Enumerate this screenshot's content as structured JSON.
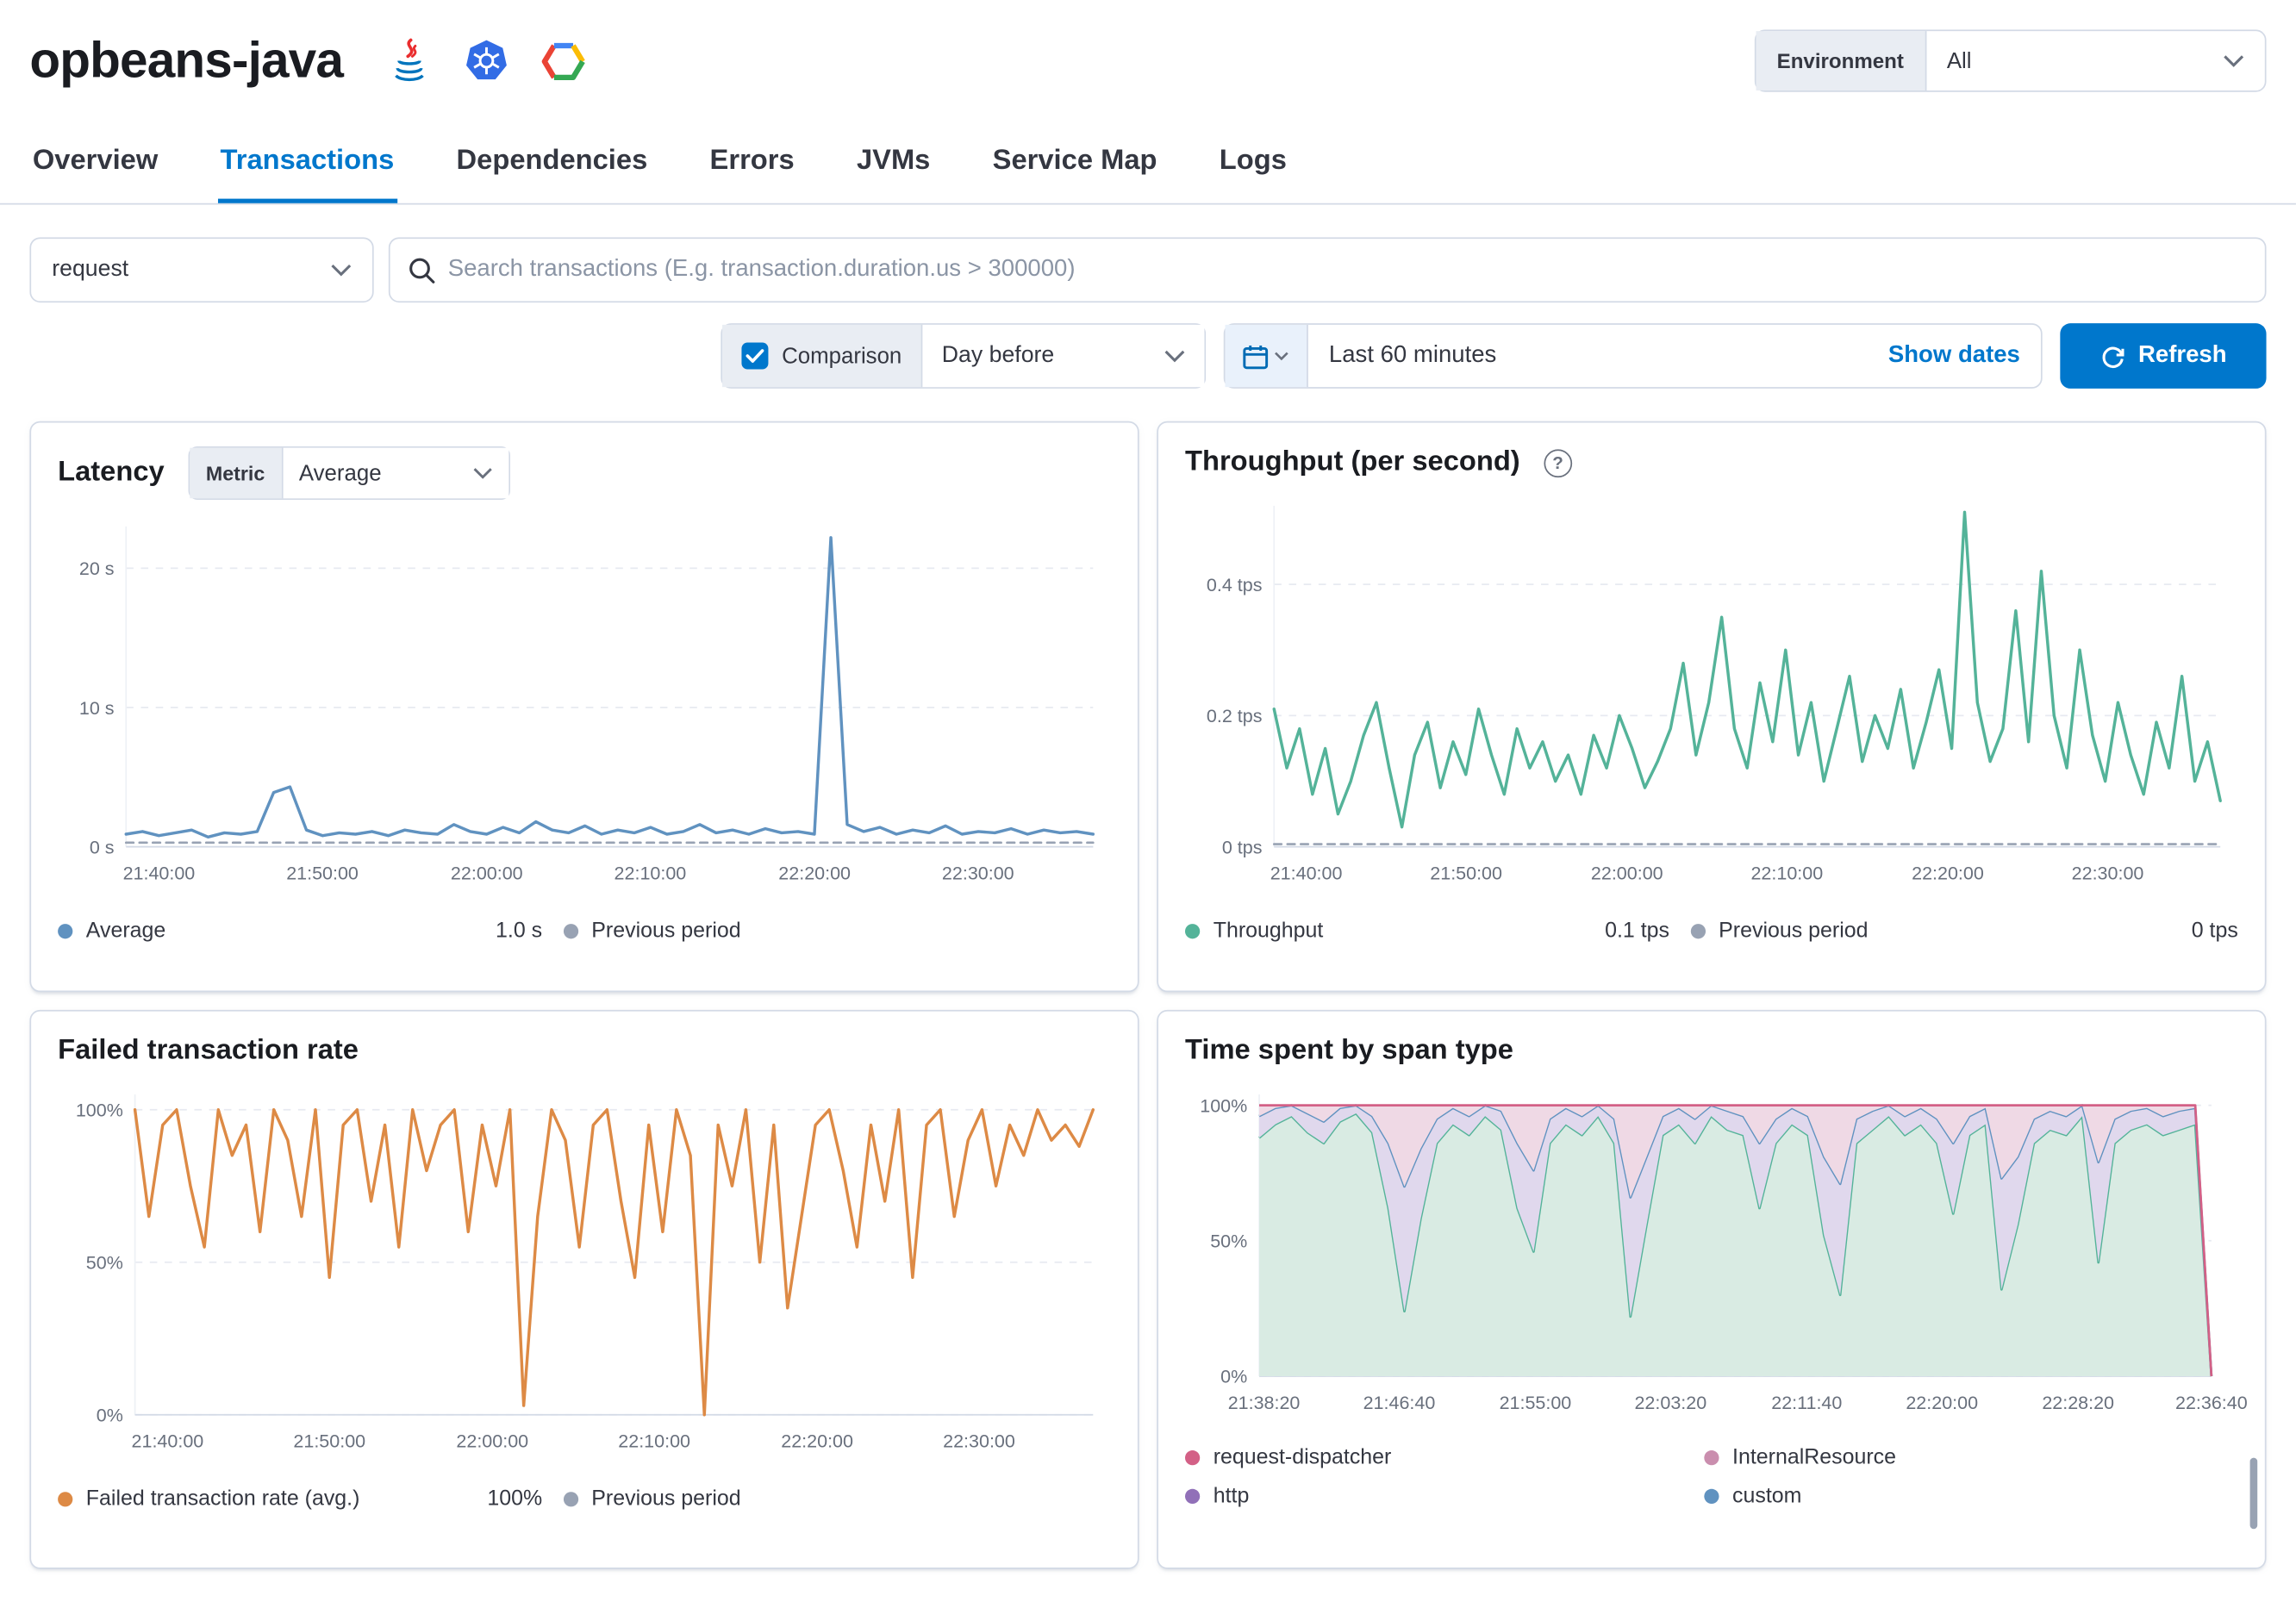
{
  "header": {
    "service_name": "opbeans-java",
    "environment_label": "Environment",
    "environment_value": "All"
  },
  "tabs": [
    {
      "label": "Overview"
    },
    {
      "label": "Transactions"
    },
    {
      "label": "Dependencies"
    },
    {
      "label": "Errors"
    },
    {
      "label": "JVMs"
    },
    {
      "label": "Service Map"
    },
    {
      "label": "Logs"
    }
  ],
  "filters": {
    "type_value": "request",
    "search_placeholder": "Search transactions (E.g. transaction.duration.us > 300000)",
    "comparison_label": "Comparison",
    "comparison_value": "Day before",
    "time_range": "Last 60 minutes",
    "show_dates_label": "Show dates",
    "refresh_label": "Refresh"
  },
  "panels": {
    "latency": {
      "title": "Latency",
      "metric_label": "Metric",
      "metric_value": "Average",
      "legend": [
        {
          "name": "Average",
          "value": "1.0 s",
          "color": "#6092C0"
        },
        {
          "name": "Previous period",
          "value": "",
          "color": "#98A2B3"
        }
      ]
    },
    "throughput": {
      "title": "Throughput (per second)",
      "help_glyph": "?",
      "legend": [
        {
          "name": "Throughput",
          "value": "0.1 tps",
          "color": "#54B399"
        },
        {
          "name": "Previous period",
          "value": "0 tps",
          "color": "#98A2B3"
        }
      ]
    },
    "failed": {
      "title": "Failed transaction rate",
      "legend": [
        {
          "name": "Failed transaction rate (avg.)",
          "value": "100%",
          "color": "#DD8A45"
        },
        {
          "name": "Previous period",
          "value": "",
          "color": "#98A2B3"
        }
      ]
    },
    "timespent": {
      "title": "Time spent by span type",
      "legend": [
        {
          "name": "request-dispatcher",
          "color": "#D36086"
        },
        {
          "name": "InternalResource",
          "color": "#CA8EAE"
        },
        {
          "name": "http",
          "color": "#9170B8"
        },
        {
          "name": "custom",
          "color": "#6092C0"
        }
      ]
    }
  },
  "chart_data": [
    {
      "id": "latency",
      "type": "line",
      "title": "Latency",
      "ylabel": "seconds",
      "ylim": [
        0,
        23
      ],
      "pad_left": 46,
      "yticks": [
        {
          "v": 0,
          "label": "0 s"
        },
        {
          "v": 10,
          "label": "10 s"
        },
        {
          "v": 20,
          "label": "20 s"
        }
      ],
      "xticks": [
        {
          "f": 0.034,
          "label": "21:40:00"
        },
        {
          "f": 0.203,
          "label": "21:50:00"
        },
        {
          "f": 0.373,
          "label": "22:00:00"
        },
        {
          "f": 0.542,
          "label": "22:10:00"
        },
        {
          "f": 0.712,
          "label": "22:20:00"
        },
        {
          "f": 0.881,
          "label": "22:30:00"
        }
      ],
      "series": [
        {
          "name": "Previous period",
          "color": "#98A2B3",
          "dashed": true,
          "width": 1.5,
          "values": [
            0.3,
            0.3
          ]
        },
        {
          "name": "Average",
          "color": "#6092C0",
          "width": 2,
          "values": [
            0.9,
            1.1,
            0.8,
            1.0,
            1.2,
            0.7,
            1.0,
            0.9,
            1.1,
            3.9,
            4.3,
            1.2,
            0.8,
            1.0,
            0.9,
            1.1,
            0.8,
            1.2,
            1.0,
            0.9,
            1.6,
            1.1,
            0.9,
            1.4,
            1.0,
            1.8,
            1.2,
            1.0,
            1.5,
            0.9,
            1.2,
            1.0,
            1.4,
            0.9,
            1.1,
            1.6,
            1.0,
            1.2,
            0.9,
            1.3,
            1.0,
            1.1,
            0.9,
            22.2,
            1.6,
            1.1,
            1.4,
            0.9,
            1.2,
            1.0,
            1.5,
            0.9,
            1.1,
            1.0,
            1.3,
            0.9,
            1.2,
            1.0,
            1.1,
            0.9
          ]
        }
      ]
    },
    {
      "id": "throughput",
      "type": "line",
      "title": "Throughput (per second)",
      "ylabel": "tps",
      "ylim": [
        0,
        0.52
      ],
      "pad_left": 60,
      "yticks": [
        {
          "v": 0,
          "label": "0 tps"
        },
        {
          "v": 0.2,
          "label": "0.2 tps"
        },
        {
          "v": 0.4,
          "label": "0.4 tps"
        }
      ],
      "xticks": [
        {
          "f": 0.034,
          "label": "21:40:00"
        },
        {
          "f": 0.203,
          "label": "21:50:00"
        },
        {
          "f": 0.373,
          "label": "22:00:00"
        },
        {
          "f": 0.542,
          "label": "22:10:00"
        },
        {
          "f": 0.712,
          "label": "22:20:00"
        },
        {
          "f": 0.881,
          "label": "22:30:00"
        }
      ],
      "series": [
        {
          "name": "Previous period",
          "color": "#98A2B3",
          "dashed": true,
          "width": 1.5,
          "values": [
            0.004,
            0.004
          ]
        },
        {
          "name": "Throughput",
          "color": "#54B399",
          "width": 2,
          "values": [
            0.21,
            0.12,
            0.18,
            0.08,
            0.15,
            0.05,
            0.1,
            0.17,
            0.22,
            0.12,
            0.03,
            0.14,
            0.19,
            0.09,
            0.16,
            0.11,
            0.21,
            0.14,
            0.08,
            0.18,
            0.12,
            0.16,
            0.1,
            0.14,
            0.08,
            0.17,
            0.12,
            0.2,
            0.15,
            0.09,
            0.13,
            0.18,
            0.28,
            0.14,
            0.22,
            0.35,
            0.18,
            0.12,
            0.25,
            0.16,
            0.3,
            0.14,
            0.22,
            0.1,
            0.18,
            0.26,
            0.13,
            0.2,
            0.15,
            0.24,
            0.12,
            0.19,
            0.27,
            0.15,
            0.51,
            0.22,
            0.13,
            0.18,
            0.36,
            0.16,
            0.42,
            0.2,
            0.12,
            0.3,
            0.17,
            0.1,
            0.22,
            0.14,
            0.08,
            0.19,
            0.12,
            0.26,
            0.1,
            0.16,
            0.07
          ]
        }
      ]
    },
    {
      "id": "failed",
      "type": "line",
      "title": "Failed transaction rate",
      "ylabel": "%",
      "ylim": [
        0,
        105
      ],
      "pad_left": 52,
      "yticks": [
        {
          "v": 0,
          "label": "0%"
        },
        {
          "v": 50,
          "label": "50%"
        },
        {
          "v": 100,
          "label": "100%"
        }
      ],
      "xticks": [
        {
          "f": 0.034,
          "label": "21:40:00"
        },
        {
          "f": 0.203,
          "label": "21:50:00"
        },
        {
          "f": 0.373,
          "label": "22:00:00"
        },
        {
          "f": 0.542,
          "label": "22:10:00"
        },
        {
          "f": 0.712,
          "label": "22:20:00"
        },
        {
          "f": 0.881,
          "label": "22:30:00"
        }
      ],
      "series": [
        {
          "name": "Failed transaction rate (avg.)",
          "color": "#DD8A45",
          "width": 2,
          "values": [
            100,
            65,
            95,
            100,
            75,
            55,
            100,
            85,
            95,
            60,
            100,
            90,
            65,
            100,
            45,
            95,
            100,
            70,
            95,
            55,
            100,
            80,
            95,
            100,
            60,
            95,
            75,
            100,
            3,
            65,
            100,
            90,
            55,
            95,
            100,
            70,
            45,
            95,
            60,
            100,
            85,
            0,
            95,
            75,
            100,
            50,
            95,
            35,
            65,
            95,
            100,
            80,
            55,
            95,
            70,
            100,
            45,
            95,
            100,
            65,
            90,
            100,
            75,
            95,
            85,
            100,
            90,
            95,
            88,
            100
          ]
        }
      ]
    },
    {
      "id": "timespent",
      "type": "stacked_area",
      "title": "Time spent by span type",
      "ylabel": "%",
      "ylim": [
        0,
        104
      ],
      "pad_left": 50,
      "yticks": [
        {
          "v": 0,
          "label": "0%"
        },
        {
          "v": 50,
          "label": "50%"
        },
        {
          "v": 100,
          "label": "100%"
        }
      ],
      "xticks": [
        {
          "f": 0.005,
          "label": "21:38:20"
        },
        {
          "f": 0.147,
          "label": "21:46:40"
        },
        {
          "f": 0.29,
          "label": "21:55:00"
        },
        {
          "f": 0.432,
          "label": "22:03:20"
        },
        {
          "f": 0.575,
          "label": "22:11:40"
        },
        {
          "f": 0.717,
          "label": "22:20:00"
        },
        {
          "f": 0.86,
          "label": "22:28:20"
        },
        {
          "f": 1.0,
          "label": "22:36:40"
        }
      ],
      "bands": [
        {
          "name": "custom",
          "fill": "#D9EBE3",
          "line": "#54B399",
          "values": [
            88,
            93,
            96,
            90,
            86,
            94,
            97,
            90,
            62,
            24,
            58,
            86,
            93,
            89,
            96,
            91,
            62,
            46,
            86,
            93,
            89,
            96,
            86,
            22,
            56,
            89,
            93,
            86,
            96,
            91,
            89,
            62,
            86,
            93,
            89,
            52,
            30,
            86,
            91,
            96,
            89,
            93,
            86,
            60,
            89,
            93,
            32,
            56,
            86,
            91,
            89,
            96,
            42,
            86,
            91,
            93,
            89,
            91,
            93,
            0
          ]
        },
        {
          "name": "http",
          "fill": "#E0D8ED",
          "line": "#6092C0",
          "values": [
            96,
            99,
            100,
            97,
            94,
            99,
            100,
            96,
            86,
            70,
            84,
            95,
            99,
            96,
            100,
            98,
            86,
            76,
            95,
            99,
            96,
            100,
            95,
            66,
            81,
            96,
            99,
            95,
            100,
            98,
            96,
            86,
            95,
            99,
            96,
            81,
            71,
            95,
            98,
            100,
            96,
            99,
            95,
            86,
            96,
            99,
            73,
            81,
            95,
            98,
            96,
            100,
            79,
            95,
            98,
            99,
            96,
            98,
            99,
            0
          ]
        },
        {
          "name": "request-dispatcher",
          "fill": "#EFD9E5",
          "line": "#D36086",
          "values": [
            100,
            100,
            100,
            100,
            100,
            100,
            100,
            100,
            100,
            100,
            100,
            100,
            100,
            100,
            100,
            100,
            100,
            100,
            100,
            100,
            100,
            100,
            100,
            100,
            100,
            100,
            100,
            100,
            100,
            100,
            100,
            100,
            100,
            100,
            100,
            100,
            100,
            100,
            100,
            100,
            100,
            100,
            100,
            100,
            100,
            100,
            100,
            100,
            100,
            100,
            100,
            100,
            100,
            100,
            100,
            100,
            100,
            100,
            100,
            0
          ]
        }
      ]
    }
  ]
}
